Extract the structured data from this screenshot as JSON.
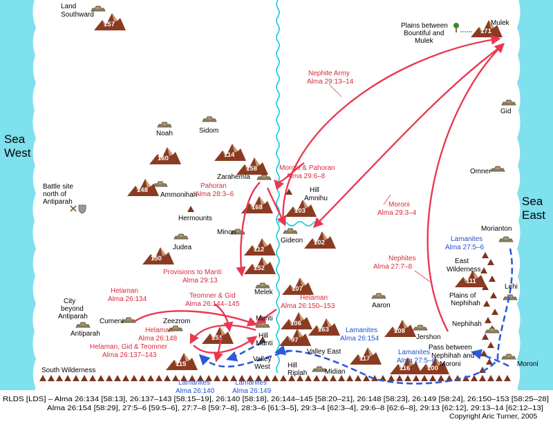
{
  "map": {
    "seas": {
      "west_line1": "Sea",
      "west_line2": "West",
      "east_line1": "Sea",
      "east_line2": "East"
    },
    "places": {
      "land_southward_1": "Land",
      "land_southward_2": "Southward",
      "noah": "Noah",
      "sidom": "Sidom",
      "zarahemla": "Zarahemla",
      "ammonihah": "Ammonihah",
      "battle_site_1": "Battle site",
      "battle_site_2": "north of",
      "battle_site_3": "Antiparah",
      "hermounts": "Hermounts",
      "minon": "Minon",
      "judea": "Judea",
      "melek": "Melek",
      "gideon": "Gideon",
      "hill_amnihu_1": "Hill",
      "hill_amnihu_2": "Amnihu",
      "city_beyond_1": "City",
      "city_beyond_2": "beyond",
      "city_beyond_3": "Antiparah",
      "cumeni": "Cumeni",
      "antiparah": "Antiparah",
      "zeezrom": "Zeezrom",
      "manti": "Manti",
      "hill_manti_1": "Hill",
      "hill_manti_2": "Manti",
      "valley_west_1": "Valley",
      "valley_west_2": "West",
      "valley_east": "Valley East",
      "hill_riplah_1": "Hill",
      "hill_riplah_2": "Riplah",
      "midian": "Midian",
      "south_wilderness": "South Wilderness",
      "aaron": "Aaron",
      "jershon": "Jershon",
      "plains_bm_1": "Plains between",
      "plains_bm_2": "Bountiful and",
      "plains_bm_3": "Mulek",
      "mulek": "Mulek",
      "gid": "Gid",
      "omner": "Omner",
      "morianton": "Morianton",
      "east_wild_1": "East",
      "east_wild_2": "Wilderness",
      "lehi": "Lehi",
      "plains_neph_1": "Plains of",
      "plains_neph_2": "Nephihah",
      "nephihah": "Nephihah",
      "pass_1": "Pass between",
      "pass_2": "Nephihah and",
      "pass_3": "Moroni",
      "moroni": "Moroni"
    },
    "mountains": {
      "m157": "157",
      "m160": "160",
      "m114": "114",
      "m158": "158",
      "m148": "148",
      "m168": "168",
      "m103": "103",
      "m102": "102",
      "m112": "112",
      "m152": "152",
      "m150": "150",
      "m107": "107",
      "m106": "106",
      "m97": "97",
      "m163": "163",
      "m151": "151",
      "m115": "115",
      "m117": "117",
      "m108": "108",
      "m116": "116",
      "m100": "100",
      "m171": "171",
      "m111": "111"
    },
    "movements": {
      "nephite_army_1": "Nephite Army",
      "nephite_army_2": "Alma 29:13–14",
      "moroni_pahoran_1": "Moroni & Pahoran",
      "moroni_pahoran_2": "Alma 29:6–8",
      "pahoran_1": "Pahoran",
      "pahoran_2": "Alma 28:3–6",
      "moroni_1": "Moroni",
      "moroni_2": "Alma 29:3–4",
      "provisions_1": "Provisions to Manti",
      "provisions_2": "Alma 29:13",
      "nephites_1": "Nephites",
      "nephites_2": "Alma 27:7–8",
      "helaman_a_1": "Helaman",
      "helaman_a_2": "Alma 26:134",
      "teomner_gid_1": "Teomner & Gid",
      "teomner_gid_2": "Alma 26:144–145",
      "helaman_b_1": "Helaman",
      "helaman_b_2": "Alma 26:150–153",
      "helaman_c_1": "Helaman",
      "helaman_c_2": "Alma 26:148",
      "hgt_1": "Helaman, Gid & Teomner",
      "hgt_2": "Alma 26:137–143",
      "lamanites_a_1": "Lamanites",
      "lamanites_a_2": "Alma 27:5–6",
      "lamanites_b_1": "Lamanites",
      "lamanites_b_2": "Alma 26:154",
      "lamanites_c_1": "Lamanites",
      "lamanites_c_2": "Alma 27:5–6",
      "lamanites_d_1": "Lamanites",
      "lamanites_d_2": "Alma 26:140",
      "lamanites_e_1": "Lamanites",
      "lamanites_e_2": "Alma 26:149"
    },
    "colors": {
      "sea": "#7fe0ee",
      "river": "#1ec8d8",
      "nephite": "#e8384f",
      "lamanite": "#2a5ad8",
      "mountain": "#8a3b22",
      "city": "#8a7a55"
    }
  },
  "footer": {
    "line1": "RLDS [LDS] – Alma 26:134 [58:13], 26:137–143 [58:15–19], 26:140 [58:18], 26:144–145 [58:20–21], 26:148 [58:23], 26:149 [58:24], 26:150–153 [58:25–28]",
    "line2": "Alma 26:154 [58:29], 27:5–6 [59:5–6], 27:7–8 [59:7–8], 28:3–6 [61:3–5], 29:3–4 [62:3–4], 29:6–8 [62:6–8], 29:13 [62:12], 29:13–14 [62:12–13]",
    "copyright": "Copyright Aric Turner, 2005"
  }
}
